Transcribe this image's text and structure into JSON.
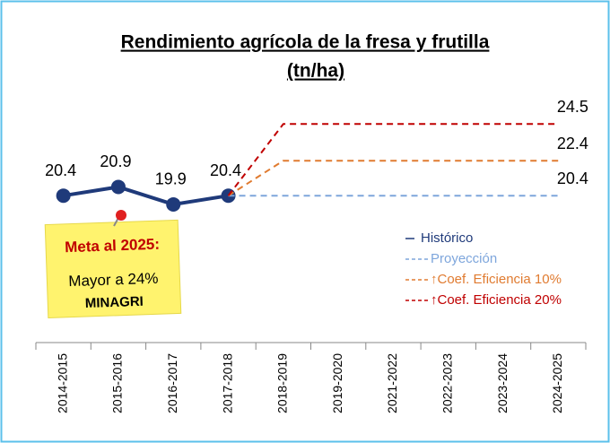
{
  "chart_data": {
    "type": "line",
    "title": "Rendimiento agrícola de la fresa y frutilla",
    "subtitle": "(tn/ha)",
    "categories": [
      "2014-2015",
      "2015-2016",
      "2016-2017",
      "2017-2018",
      "2018-2019",
      "2019-2020",
      "2021-2022",
      "2022-2023",
      "2023-2024",
      "2024-2025"
    ],
    "series": [
      {
        "name": "Histórico",
        "color": "#1f3a7a",
        "values": [
          20.4,
          20.9,
          19.9,
          20.4,
          null,
          null,
          null,
          null,
          null,
          null
        ]
      },
      {
        "name": "Proyección",
        "color": "#7ea6dc",
        "values": [
          null,
          null,
          null,
          20.4,
          20.4,
          20.4,
          20.4,
          20.4,
          20.4,
          20.4
        ]
      },
      {
        "name": "↑Coef. Eficiencia 10%",
        "color": "#e07b30",
        "values": [
          null,
          null,
          null,
          20.4,
          22.4,
          22.4,
          22.4,
          22.4,
          22.4,
          22.4
        ]
      },
      {
        "name": "↑Coef. Eficiencia 20%",
        "color": "#c00000",
        "values": [
          null,
          null,
          null,
          20.4,
          24.5,
          24.5,
          24.5,
          24.5,
          24.5,
          24.5
        ]
      }
    ],
    "ylim": [
      12,
      26
    ],
    "annotation": [
      "Meta al 2025:",
      "Mayor a 24%",
      "MINAGRI"
    ]
  }
}
